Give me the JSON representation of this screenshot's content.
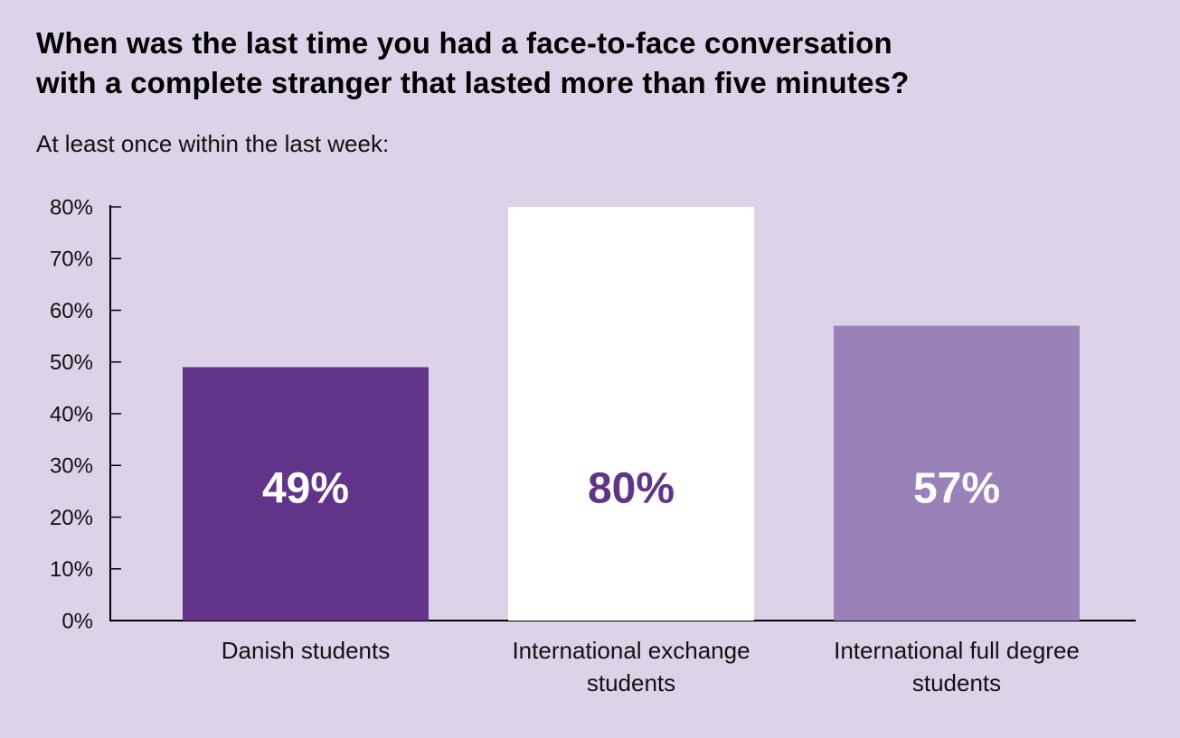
{
  "chart_data": {
    "type": "bar",
    "title": "When was the last time you had a face-to-face conversation\nwith a complete stranger that lasted more than five minutes?",
    "subtitle": "At least once within the last week:",
    "categories": [
      "Danish students",
      "International exchange students",
      "International full degree students"
    ],
    "values": [
      49,
      80,
      57
    ],
    "value_labels": [
      "49%",
      "80%",
      "57%"
    ],
    "colors": [
      "#623489",
      "#ffffff",
      "#9a82b8"
    ],
    "value_label_colors": [
      "#ffffff",
      "#623489",
      "#ffffff"
    ],
    "ylim": [
      0,
      80
    ],
    "yticks": [
      {
        "value": 0,
        "label": "0%"
      },
      {
        "value": 10,
        "label": "10%"
      },
      {
        "value": 20,
        "label": "20%"
      },
      {
        "value": 30,
        "label": "30%"
      },
      {
        "value": 40,
        "label": "40%"
      },
      {
        "value": 50,
        "label": "50%"
      },
      {
        "value": 60,
        "label": "60%"
      },
      {
        "value": 70,
        "label": "70%"
      },
      {
        "value": 80,
        "label": "80%"
      }
    ],
    "grid": false
  }
}
